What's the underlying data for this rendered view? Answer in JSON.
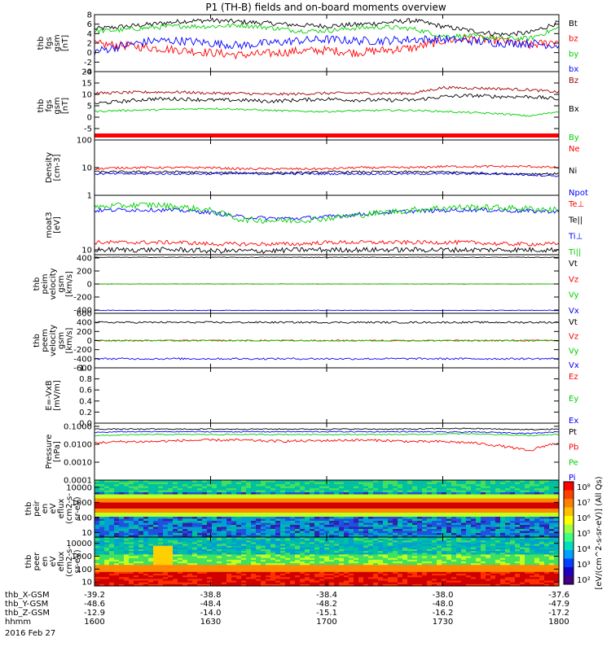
{
  "title": "P1 (TH-B) fields and on-board moments overview",
  "date": "2016 Feb 27",
  "chart_data": {
    "type": "line",
    "time_ticks": [
      "1600",
      "1630",
      "1700",
      "1730",
      "1800"
    ],
    "panels": [
      {
        "id": "fgs",
        "ylabel": [
          "thb",
          "fgs",
          "gsm",
          "[nT]"
        ],
        "ylim": [
          -4,
          8
        ],
        "ticks": [
          {
            "v": 8,
            "t": "8"
          },
          {
            "v": 6,
            "t": "6"
          },
          {
            "v": 4,
            "t": "4"
          },
          {
            "v": 2,
            "t": "2"
          },
          {
            "v": 0,
            "t": "0"
          },
          {
            "v": -2,
            "t": "-2"
          },
          {
            "v": -4,
            "t": "-4"
          }
        ],
        "series": [
          {
            "name": "Bt",
            "color": "#000000",
            "base": 6,
            "noise": 0.5,
            "values": [
              5.0,
              5.5,
              6.0,
              6.6,
              6.8,
              6.5,
              6.2,
              5.8,
              5.6,
              5.9,
              6.3,
              6.8,
              5.5,
              4.6,
              3.8,
              4.2,
              6.4
            ]
          },
          {
            "name": "bz",
            "color": "#ff0000",
            "base": 2,
            "noise": 0.9,
            "values": [
              1.8,
              1.5,
              1.0,
              0.5,
              0.0,
              -0.5,
              -0.2,
              0.3,
              0.5,
              0.0,
              0.5,
              1.0,
              2.5,
              3.0,
              2.5,
              1.5,
              2.5
            ]
          },
          {
            "name": "by",
            "color": "#00d000",
            "base": 4,
            "noise": 0.5,
            "values": [
              4.5,
              4.8,
              5.3,
              5.6,
              5.5,
              5.8,
              5.3,
              4.6,
              4.6,
              5.2,
              5.4,
              5.0,
              3.5,
              3.5,
              3.0,
              3.0,
              5.2
            ]
          },
          {
            "name": "bx",
            "color": "#0000ff",
            "base": 0,
            "noise": 0.9,
            "values": [
              0.2,
              1.5,
              2.5,
              2.5,
              2.0,
              1.5,
              2.0,
              2.5,
              2.8,
              2.5,
              2.5,
              2.8,
              2.8,
              2.5,
              2.0,
              2.0,
              1.5
            ]
          }
        ]
      },
      {
        "id": "fgs_gsm",
        "ylabel": [
          "thb",
          "fgs",
          "gsm",
          "[nT]"
        ],
        "ylim": [
          -10,
          20
        ],
        "ticks": [
          {
            "v": 20,
            "t": "20"
          },
          {
            "v": 15,
            "t": "15"
          },
          {
            "v": 10,
            "t": "10"
          },
          {
            "v": 5,
            "t": "5"
          },
          {
            "v": 0,
            "t": "0"
          },
          {
            "v": -5,
            "t": "-5"
          }
        ],
        "series": [
          {
            "name": "Bz",
            "color": "#a00000",
            "base": 10,
            "noise": 0.6,
            "values": [
              10.5,
              10.8,
              11.0,
              11.0,
              10.5,
              10.5,
              10.0,
              10.2,
              10.5,
              10.6,
              10.5,
              10.5,
              13.0,
              12.8,
              12.5,
              12.0,
              11.0
            ]
          },
          {
            "name": "Bx",
            "color": "#000000",
            "base": 6,
            "noise": 0.8,
            "values": [
              6.0,
              7.0,
              8.0,
              8.0,
              7.5,
              7.5,
              7.0,
              7.5,
              8.0,
              7.5,
              7.5,
              7.5,
              9.0,
              9.5,
              9.0,
              9.0,
              8.0
            ]
          },
          {
            "name": "By",
            "color": "#00d000",
            "base": 3,
            "noise": 0.4,
            "values": [
              2.5,
              3.0,
              3.2,
              3.5,
              3.8,
              3.5,
              3.0,
              2.6,
              2.5,
              2.8,
              3.0,
              3.0,
              2.5,
              2.0,
              1.5,
              0.5,
              2.5
            ]
          }
        ],
        "quality_bar": "#ff0000"
      },
      {
        "id": "density",
        "ylabel": [
          "Density",
          "[cm-3]"
        ],
        "log": true,
        "ylim": [
          1,
          100
        ],
        "ticks": [
          {
            "v": 100,
            "t": "100"
          },
          {
            "v": 10,
            "t": "10"
          },
          {
            "v": 1,
            "t": "1"
          }
        ],
        "series": [
          {
            "name": "Ne",
            "color": "#ff0000",
            "noise": 0.04,
            "values": [
              9,
              10,
              10,
              10,
              10,
              9,
              9,
              9,
              9,
              10,
              10,
              10,
              11,
              11,
              11,
              11,
              10
            ]
          },
          {
            "name": "Ni",
            "color": "#000000",
            "noise": 0.04,
            "values": [
              7,
              7,
              7,
              7,
              6.5,
              6.5,
              6.5,
              6.5,
              7,
              7,
              7,
              7,
              7,
              6.5,
              6,
              6,
              6
            ]
          },
          {
            "name": "Npot",
            "color": "#0000ff",
            "noise": 0.04,
            "values": [
              6,
              6,
              6,
              6,
              6,
              6,
              6,
              6,
              6,
              6,
              6,
              6,
              6,
              6,
              6,
              5.5,
              5
            ]
          }
        ]
      },
      {
        "id": "temps",
        "ylabel": [
          "moat3",
          "[eV]"
        ],
        "log": true,
        "ylim": [
          8,
          120
        ],
        "ticks": [
          {
            "v": 10,
            "t": "10"
          }
        ],
        "series": [
          {
            "name": "Te⊥",
            "color": "#ff0000",
            "noise": 0.04,
            "values": [
              14,
              14,
              14,
              14,
              13,
              13,
              13,
              13,
              14,
              14,
              14,
              14,
              14,
              14,
              13,
              13,
              13
            ]
          },
          {
            "name": "Te||",
            "color": "#000000",
            "noise": 0.05,
            "values": [
              10,
              10,
              10,
              10,
              9.5,
              9.5,
              9.5,
              10,
              10,
              10,
              10,
              10,
              10,
              10,
              10,
              10,
              10
            ]
          },
          {
            "name": "Ti⊥",
            "color": "#0000ff",
            "noise": 0.04,
            "values": [
              60,
              62,
              62,
              60,
              55,
              45,
              42,
              42,
              45,
              50,
              55,
              58,
              60,
              62,
              60,
              58,
              58
            ]
          },
          {
            "name": "Ti||",
            "color": "#00d000",
            "noise": 0.06,
            "values": [
              70,
              75,
              78,
              70,
              60,
              40,
              38,
              38,
              42,
              48,
              55,
              62,
              68,
              70,
              68,
              65,
              62
            ]
          }
        ]
      },
      {
        "id": "peim",
        "ylabel": [
          "thb",
          "peim",
          "velocity",
          "gsm",
          "[km/s]"
        ],
        "ylim": [
          -450,
          450
        ],
        "ticks": [
          {
            "v": 400,
            "t": "400"
          },
          {
            "v": 200,
            "t": "200"
          },
          {
            "v": 0,
            "t": "0"
          },
          {
            "v": -200,
            "t": "-200"
          },
          {
            "v": -400,
            "t": "-400"
          }
        ],
        "series": [
          {
            "name": "Vt",
            "color": "#000000",
            "base": 410,
            "noise": 4
          },
          {
            "name": "Vz",
            "color": "#ff0000",
            "base": 0,
            "noise": 4
          },
          {
            "name": "Vy",
            "color": "#00d000",
            "base": 0,
            "noise": 3
          },
          {
            "name": "Vx",
            "color": "#0000ff",
            "base": -405,
            "noise": 4
          }
        ]
      },
      {
        "id": "peem",
        "ylabel": [
          "thb",
          "peem",
          "velocity",
          "gsm",
          "[km/s]"
        ],
        "ylim": [
          -600,
          600
        ],
        "ticks": [
          {
            "v": 600,
            "t": "600"
          },
          {
            "v": 400,
            "t": "400"
          },
          {
            "v": 200,
            "t": "200"
          },
          {
            "v": 0,
            "t": "0"
          },
          {
            "v": -200,
            "t": "-200"
          },
          {
            "v": -400,
            "t": "-400"
          },
          {
            "v": -600,
            "t": "-600"
          }
        ],
        "series": [
          {
            "name": "Vt",
            "color": "#000000",
            "base": 400,
            "noise": 20
          },
          {
            "name": "Vz",
            "color": "#ff0000",
            "base": 0,
            "noise": 15
          },
          {
            "name": "Vy",
            "color": "#00d000",
            "base": 0,
            "noise": 15
          },
          {
            "name": "Vx",
            "color": "#0000ff",
            "base": -400,
            "noise": 20
          }
        ]
      },
      {
        "id": "efield",
        "ylabel": [
          "E=-VxB",
          "[mV/m]"
        ],
        "ylim": [
          0,
          1
        ],
        "ticks": [
          {
            "v": 1,
            "t": "1.0"
          },
          {
            "v": 0.8,
            "t": "0.8"
          },
          {
            "v": 0.6,
            "t": "0.6"
          },
          {
            "v": 0.4,
            "t": "0.4"
          },
          {
            "v": 0.2,
            "t": "0.2"
          },
          {
            "v": 0,
            "t": "0.0"
          }
        ],
        "series": [
          {
            "name": "Ez",
            "color": "#ff0000"
          },
          {
            "name": "Ey",
            "color": "#00d000"
          },
          {
            "name": "Ex",
            "color": "#0000ff"
          }
        ]
      },
      {
        "id": "pressure",
        "ylabel": [
          "Pressure",
          "[nPa]"
        ],
        "log": true,
        "ylim": [
          0.0001,
          0.15
        ],
        "ticks": [
          {
            "v": 0.1,
            "t": "0.1000"
          },
          {
            "v": 0.01,
            "t": "0.0100"
          },
          {
            "v": 0.001,
            "t": "0.0010"
          },
          {
            "v": 0.0001,
            "t": "0.0001"
          }
        ],
        "series": [
          {
            "name": "Pt",
            "color": "#000000",
            "noise": 0.03,
            "values": [
              0.07,
              0.07,
              0.07,
              0.07,
              0.07,
              0.07,
              0.07,
              0.07,
              0.07,
              0.07,
              0.07,
              0.07,
              0.075,
              0.075,
              0.07,
              0.065,
              0.07
            ]
          },
          {
            "name": "Pb",
            "color": "#ff0000",
            "noise": 0.07,
            "values": [
              0.012,
              0.014,
              0.014,
              0.016,
              0.017,
              0.017,
              0.015,
              0.015,
              0.016,
              0.017,
              0.016,
              0.014,
              0.014,
              0.012,
              0.008,
              0.004,
              0.012
            ]
          },
          {
            "name": "Pe",
            "color": "#00d000",
            "noise": 0.03,
            "values": [
              0.03,
              0.033,
              0.035,
              0.035,
              0.035,
              0.035,
              0.035,
              0.035,
              0.035,
              0.035,
              0.035,
              0.035,
              0.038,
              0.038,
              0.035,
              0.03,
              0.035
            ]
          },
          {
            "name": "Pi",
            "color": "#0000ff",
            "noise": 0.03,
            "values": [
              0.045,
              0.05,
              0.05,
              0.05,
              0.05,
              0.05,
              0.05,
              0.05,
              0.05,
              0.05,
              0.05,
              0.05,
              0.048,
              0.048,
              0.045,
              0.04,
              0.05
            ]
          }
        ]
      },
      {
        "id": "peir",
        "type": "heatmap",
        "ylabel": [
          "thb",
          "peir",
          "en",
          "eV",
          "eflux",
          "(cm2-s-",
          "sr-eV)"
        ],
        "log": true,
        "ylim": [
          5,
          30000
        ],
        "ticks": [
          {
            "v": 10000,
            "t": "10000"
          },
          {
            "v": 1000,
            "t": "1000"
          },
          {
            "v": 100,
            "t": "100"
          },
          {
            "v": 10,
            "t": "10"
          }
        ]
      },
      {
        "id": "peer",
        "type": "heatmap",
        "ylabel": [
          "thb",
          "peer",
          "en",
          "eV",
          "eflux",
          "(cm2-s-",
          "sr-eV)"
        ],
        "log": true,
        "ylim": [
          5,
          30000
        ],
        "ticks": [
          {
            "v": 10000,
            "t": "10000"
          },
          {
            "v": 1000,
            "t": "1000"
          },
          {
            "v": 100,
            "t": "100"
          },
          {
            "v": 10,
            "t": "10"
          }
        ]
      }
    ],
    "colorbar": {
      "label": "[eV/(cm^2-s-sr-eV)] (All Qs)",
      "ticks": [
        "10⁸",
        "10⁷",
        "10⁶",
        "10⁵",
        "10⁴",
        "10³",
        "10²"
      ]
    },
    "position_rows": [
      {
        "label": "thb_X-GSM",
        "values": [
          "-39.2",
          "-38.8",
          "-38.4",
          "-38.0",
          "-37.6"
        ]
      },
      {
        "label": "thb_Y-GSM",
        "values": [
          "-48.6",
          "-48.4",
          "-48.2",
          "-48.0",
          "-47.9"
        ]
      },
      {
        "label": "thb_Z-GSM",
        "values": [
          "-12.9",
          "-14.0",
          "-15.1",
          "-16.2",
          "-17.2"
        ]
      },
      {
        "label": "hhmm",
        "values": [
          "1600",
          "1630",
          "1700",
          "1730",
          "1800"
        ]
      }
    ]
  }
}
